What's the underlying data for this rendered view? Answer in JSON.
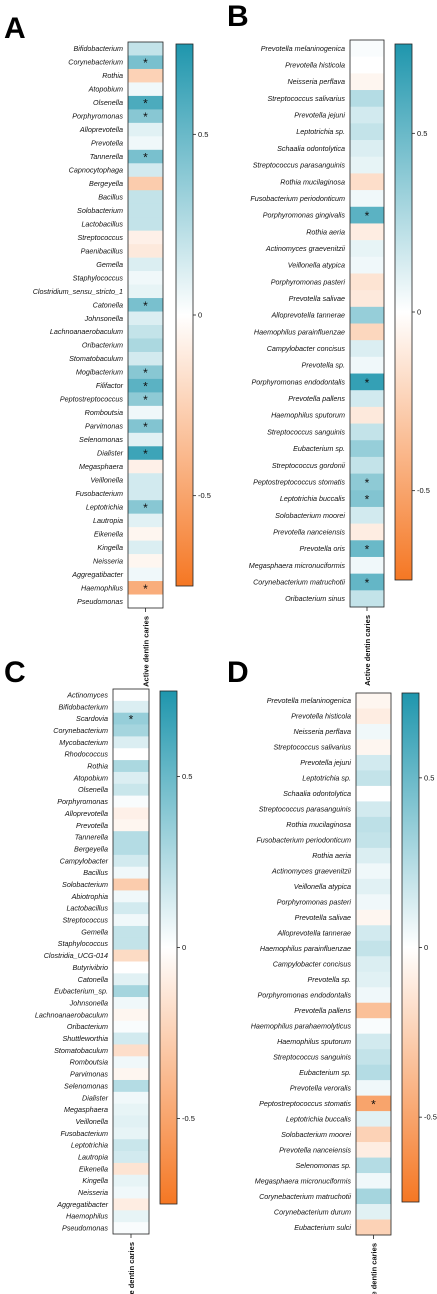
{
  "chart_data": [
    {
      "panel": "A",
      "type": "heatmap",
      "xlabel": "Active dentin caries",
      "colorbar": {
        "ticks": [
          0.5,
          0,
          -0.5
        ],
        "range": [
          -0.75,
          0.75
        ],
        "colors": {
          "positive": "#1f96ad",
          "zero": "#ffffff",
          "negative": "#f57723"
        }
      },
      "rows": [
        {
          "label": "Bifidobacterium",
          "value": 0.2,
          "sig": false
        },
        {
          "label": "Corynebacterium",
          "value": 0.45,
          "sig": true
        },
        {
          "label": "Rothia",
          "value": -0.25,
          "sig": false
        },
        {
          "label": "Atopobium",
          "value": 0.05,
          "sig": false
        },
        {
          "label": "Olsenella",
          "value": 0.6,
          "sig": true
        },
        {
          "label": "Porphyromonas",
          "value": 0.4,
          "sig": true
        },
        {
          "label": "Alloprevotella",
          "value": 0.1,
          "sig": false
        },
        {
          "label": "Prevotella",
          "value": 0.05,
          "sig": false
        },
        {
          "label": "Tannerella",
          "value": 0.45,
          "sig": true
        },
        {
          "label": "Capnocytophaga",
          "value": 0.15,
          "sig": false
        },
        {
          "label": "Bergeyella",
          "value": -0.28,
          "sig": false
        },
        {
          "label": "Bacillus",
          "value": 0.2,
          "sig": false
        },
        {
          "label": "Solobacterium",
          "value": 0.2,
          "sig": false
        },
        {
          "label": "Lactobacillus",
          "value": 0.2,
          "sig": false
        },
        {
          "label": "Streptococcus",
          "value": -0.08,
          "sig": false
        },
        {
          "label": "Paenibacillus",
          "value": -0.12,
          "sig": false
        },
        {
          "label": "Gemella",
          "value": 0.12,
          "sig": false
        },
        {
          "label": "Staphylococcus",
          "value": 0.05,
          "sig": false
        },
        {
          "label": "Clostridium_sensu_stricto_1",
          "value": 0.08,
          "sig": false
        },
        {
          "label": "Catonella",
          "value": 0.45,
          "sig": true
        },
        {
          "label": "Johnsonella",
          "value": 0.12,
          "sig": false
        },
        {
          "label": "Lachnoanaerobaculum",
          "value": 0.2,
          "sig": false
        },
        {
          "label": "Oribacterium",
          "value": 0.28,
          "sig": false
        },
        {
          "label": "Stomatobaculum",
          "value": 0.15,
          "sig": false
        },
        {
          "label": "Mogibacterium",
          "value": 0.4,
          "sig": true
        },
        {
          "label": "Filifactor",
          "value": 0.55,
          "sig": true
        },
        {
          "label": "Peptostreptococcus",
          "value": 0.38,
          "sig": true
        },
        {
          "label": "Romboutsia",
          "value": 0.05,
          "sig": false
        },
        {
          "label": "Parvimonas",
          "value": 0.42,
          "sig": true
        },
        {
          "label": "Selenomonas",
          "value": 0.1,
          "sig": false
        },
        {
          "label": "Dialister",
          "value": 0.65,
          "sig": true
        },
        {
          "label": "Megasphaera",
          "value": -0.08,
          "sig": false
        },
        {
          "label": "Veillonella",
          "value": 0.15,
          "sig": false
        },
        {
          "label": "Fusobacterium",
          "value": 0.15,
          "sig": false
        },
        {
          "label": "Leptotrichia",
          "value": 0.4,
          "sig": true
        },
        {
          "label": "Lautropia",
          "value": 0.1,
          "sig": false
        },
        {
          "label": "Eikenella",
          "value": -0.05,
          "sig": false
        },
        {
          "label": "Kingella",
          "value": 0.12,
          "sig": false
        },
        {
          "label": "Neisseria",
          "value": -0.05,
          "sig": false
        },
        {
          "label": "Aggregatibacter",
          "value": 0.05,
          "sig": false
        },
        {
          "label": "Haemophilus",
          "value": -0.45,
          "sig": true
        },
        {
          "label": "Pseudomonas",
          "value": 0.0,
          "sig": false
        }
      ]
    },
    {
      "panel": "B",
      "type": "heatmap",
      "xlabel": "Active dentin caries",
      "colorbar": {
        "ticks": [
          0.5,
          0,
          -0.5
        ],
        "range": [
          -0.75,
          0.75
        ],
        "colors": {
          "positive": "#1f96ad",
          "zero": "#ffffff",
          "negative": "#f57723"
        }
      },
      "rows": [
        {
          "label": "Prevotella melaninogenica",
          "value": 0.02,
          "sig": false
        },
        {
          "label": "Prevotella histicola",
          "value": 0.0,
          "sig": false
        },
        {
          "label": "Neisseria perflava",
          "value": -0.05,
          "sig": false
        },
        {
          "label": "Streptococcus salivarius",
          "value": 0.25,
          "sig": false
        },
        {
          "label": "Prevotella jejuni",
          "value": 0.15,
          "sig": false
        },
        {
          "label": "Leptotrichia sp.",
          "value": 0.2,
          "sig": false
        },
        {
          "label": "Schaalia odontolytica",
          "value": 0.12,
          "sig": false
        },
        {
          "label": "Streptococcus parasanguinis",
          "value": 0.08,
          "sig": false
        },
        {
          "label": "Rothia mucilaginosa",
          "value": -0.18,
          "sig": false
        },
        {
          "label": "Fusobacterium periodonticum",
          "value": 0.05,
          "sig": false
        },
        {
          "label": "Porphyromonas gingivalis",
          "value": 0.55,
          "sig": true
        },
        {
          "label": "Rothia aeria",
          "value": -0.1,
          "sig": false
        },
        {
          "label": "Actinomyces graevenitzii",
          "value": 0.08,
          "sig": false
        },
        {
          "label": "Veillonella atypica",
          "value": 0.05,
          "sig": false
        },
        {
          "label": "Porphyromonas pasteri",
          "value": -0.15,
          "sig": false
        },
        {
          "label": "Prevotella salivae",
          "value": -0.12,
          "sig": false
        },
        {
          "label": "Alloprevotella tannerae",
          "value": 0.35,
          "sig": false
        },
        {
          "label": "Haemophilus parainfluenzae",
          "value": -0.22,
          "sig": false
        },
        {
          "label": "Campylobacter concisus",
          "value": 0.12,
          "sig": false
        },
        {
          "label": "Prevotella sp.",
          "value": 0.05,
          "sig": false
        },
        {
          "label": "Porphyromonas endodontalis",
          "value": 0.68,
          "sig": true
        },
        {
          "label": "Prevotella pallens",
          "value": 0.15,
          "sig": false
        },
        {
          "label": "Haemophilus sputorum",
          "value": -0.12,
          "sig": false
        },
        {
          "label": "Streptococcus sanguinis",
          "value": 0.2,
          "sig": false
        },
        {
          "label": "Eubacterium sp.",
          "value": 0.35,
          "sig": false
        },
        {
          "label": "Streptococcus gordonii",
          "value": 0.2,
          "sig": false
        },
        {
          "label": "Peptostreptococcus stomatis",
          "value": 0.38,
          "sig": true
        },
        {
          "label": "Leptotrichia buccalis",
          "value": 0.42,
          "sig": true
        },
        {
          "label": "Solobacterium moorei",
          "value": 0.15,
          "sig": false
        },
        {
          "label": "Prevotella nanceiensis",
          "value": -0.1,
          "sig": false
        },
        {
          "label": "Prevotella oris",
          "value": 0.5,
          "sig": true
        },
        {
          "label": "Megasphaera micronuciformis",
          "value": 0.05,
          "sig": false
        },
        {
          "label": "Corynebacterium matruchotii",
          "value": 0.52,
          "sig": true
        },
        {
          "label": "Oribacterium sinus",
          "value": 0.2,
          "sig": false
        }
      ]
    },
    {
      "panel": "C",
      "type": "heatmap",
      "xlabel": "Active dentin caries",
      "colorbar": {
        "ticks": [
          0.5,
          0,
          -0.5
        ],
        "range": [
          -0.75,
          0.75
        ],
        "colors": {
          "positive": "#1f96ad",
          "zero": "#ffffff",
          "negative": "#f57723"
        }
      },
      "rows": [
        {
          "label": "Actinomyces",
          "value": 0.0,
          "sig": false
        },
        {
          "label": "Bifidobacterium",
          "value": 0.12,
          "sig": false
        },
        {
          "label": "Scardovia",
          "value": 0.35,
          "sig": true
        },
        {
          "label": "Corynebacterium",
          "value": 0.3,
          "sig": false
        },
        {
          "label": "Mycobacterium",
          "value": 0.12,
          "sig": false
        },
        {
          "label": "Rhodococcus",
          "value": 0.0,
          "sig": false
        },
        {
          "label": "Rothia",
          "value": 0.28,
          "sig": false
        },
        {
          "label": "Atopobium",
          "value": 0.12,
          "sig": false
        },
        {
          "label": "Olsenella",
          "value": 0.18,
          "sig": false
        },
        {
          "label": "Porphyromonas",
          "value": 0.02,
          "sig": false
        },
        {
          "label": "Alloprevotella",
          "value": -0.08,
          "sig": false
        },
        {
          "label": "Prevotella",
          "value": -0.05,
          "sig": false
        },
        {
          "label": "Tannerella",
          "value": 0.25,
          "sig": false
        },
        {
          "label": "Bergeyella",
          "value": 0.25,
          "sig": false
        },
        {
          "label": "Campylobacter",
          "value": 0.15,
          "sig": false
        },
        {
          "label": "Bacillus",
          "value": 0.05,
          "sig": false
        },
        {
          "label": "Solobacterium",
          "value": -0.28,
          "sig": false
        },
        {
          "label": "Abiotrophia",
          "value": 0.05,
          "sig": false
        },
        {
          "label": "Lactobacillus",
          "value": 0.15,
          "sig": false
        },
        {
          "label": "Streptococcus",
          "value": 0.05,
          "sig": false
        },
        {
          "label": "Gemella",
          "value": 0.2,
          "sig": false
        },
        {
          "label": "Staphylococcus",
          "value": 0.2,
          "sig": false
        },
        {
          "label": "Clostridia_UCG-014",
          "value": -0.2,
          "sig": false
        },
        {
          "label": "Butyrivibrio",
          "value": 0.0,
          "sig": false
        },
        {
          "label": "Catonella",
          "value": 0.1,
          "sig": false
        },
        {
          "label": "Eubacterium_sp.",
          "value": 0.3,
          "sig": false
        },
        {
          "label": "Johnsonella",
          "value": 0.05,
          "sig": false
        },
        {
          "label": "Lachnoanaerobaculum",
          "value": -0.05,
          "sig": false
        },
        {
          "label": "Oribacterium",
          "value": 0.02,
          "sig": false
        },
        {
          "label": "Shuttleworthia",
          "value": 0.15,
          "sig": false
        },
        {
          "label": "Stomatobaculum",
          "value": -0.18,
          "sig": false
        },
        {
          "label": "Romboutsia",
          "value": 0.05,
          "sig": false
        },
        {
          "label": "Parvimonas",
          "value": -0.05,
          "sig": false
        },
        {
          "label": "Selenomonas",
          "value": 0.25,
          "sig": false
        },
        {
          "label": "Dialister",
          "value": 0.05,
          "sig": false
        },
        {
          "label": "Megasphaera",
          "value": 0.08,
          "sig": false
        },
        {
          "label": "Veillonella",
          "value": 0.1,
          "sig": false
        },
        {
          "label": "Fusobacterium",
          "value": 0.08,
          "sig": false
        },
        {
          "label": "Leptotrichia",
          "value": 0.18,
          "sig": false
        },
        {
          "label": "Lautropia",
          "value": 0.15,
          "sig": false
        },
        {
          "label": "Eikenella",
          "value": -0.15,
          "sig": false
        },
        {
          "label": "Kingella",
          "value": 0.08,
          "sig": false
        },
        {
          "label": "Neisseria",
          "value": 0.05,
          "sig": false
        },
        {
          "label": "Aggregatibacter",
          "value": -0.1,
          "sig": false
        },
        {
          "label": "Haemophilus",
          "value": 0.08,
          "sig": false
        },
        {
          "label": "Pseudomonas",
          "value": 0.02,
          "sig": false
        }
      ]
    },
    {
      "panel": "D",
      "type": "heatmap",
      "xlabel": "Active dentin caries",
      "colorbar": {
        "ticks": [
          0.5,
          0,
          -0.5
        ],
        "range": [
          -0.75,
          0.75
        ],
        "colors": {
          "positive": "#1f96ad",
          "zero": "#ffffff",
          "negative": "#f57723"
        }
      },
      "rows": [
        {
          "label": "Prevotella melaninogenica",
          "value": -0.05,
          "sig": false
        },
        {
          "label": "Prevotella histicola",
          "value": -0.1,
          "sig": false
        },
        {
          "label": "Neisseria perflava",
          "value": 0.05,
          "sig": false
        },
        {
          "label": "Streptococcus salivarius",
          "value": -0.05,
          "sig": false
        },
        {
          "label": "Prevotella jejuni",
          "value": 0.15,
          "sig": false
        },
        {
          "label": "Leptotrichia sp.",
          "value": 0.2,
          "sig": false
        },
        {
          "label": "Schaalia odontolytica",
          "value": 0.0,
          "sig": false
        },
        {
          "label": "Streptococcus parasanguinis",
          "value": 0.15,
          "sig": false
        },
        {
          "label": "Rothia mucilaginosa",
          "value": 0.22,
          "sig": false
        },
        {
          "label": "Fusobacterium periodonticum",
          "value": 0.2,
          "sig": false
        },
        {
          "label": "Rothia aeria",
          "value": 0.12,
          "sig": false
        },
        {
          "label": "Actinomyces graevenitzii",
          "value": 0.05,
          "sig": false
        },
        {
          "label": "Veillonella atypica",
          "value": 0.1,
          "sig": false
        },
        {
          "label": "Porphyromonas pasteri",
          "value": 0.05,
          "sig": false
        },
        {
          "label": "Prevotella salivae",
          "value": -0.05,
          "sig": false
        },
        {
          "label": "Alloprevotella tannerae",
          "value": 0.15,
          "sig": false
        },
        {
          "label": "Haemophilus parainfluenzae",
          "value": 0.2,
          "sig": false
        },
        {
          "label": "Campylobacter concisus",
          "value": 0.12,
          "sig": false
        },
        {
          "label": "Prevotella sp.",
          "value": 0.1,
          "sig": false
        },
        {
          "label": "Porphyromonas endodontalis",
          "value": 0.05,
          "sig": false
        },
        {
          "label": "Prevotella pallens",
          "value": -0.35,
          "sig": false
        },
        {
          "label": "Haemophilus parahaemolyticus",
          "value": 0.02,
          "sig": false
        },
        {
          "label": "Haemophilus sputorum",
          "value": 0.15,
          "sig": false
        },
        {
          "label": "Streptococcus sanguinis",
          "value": 0.2,
          "sig": false
        },
        {
          "label": "Eubacterium sp.",
          "value": 0.25,
          "sig": false
        },
        {
          "label": "Prevotella veroralis",
          "value": 0.05,
          "sig": false
        },
        {
          "label": "Peptostreptococcus stomatis",
          "value": -0.5,
          "sig": true
        },
        {
          "label": "Leptotrichia buccalis",
          "value": 0.1,
          "sig": false
        },
        {
          "label": "Solobacterium moorei",
          "value": -0.25,
          "sig": false
        },
        {
          "label": "Prevotella nanceiensis",
          "value": -0.1,
          "sig": false
        },
        {
          "label": "Selenomonas sp.",
          "value": 0.25,
          "sig": false
        },
        {
          "label": "Megasphaera micronuciformis",
          "value": 0.05,
          "sig": false
        },
        {
          "label": "Corynebacterium matruchotii",
          "value": 0.3,
          "sig": false
        },
        {
          "label": "Corynebacterium durum",
          "value": 0.1,
          "sig": false
        },
        {
          "label": "Eubacterium sulci",
          "value": -0.25,
          "sig": false
        }
      ]
    }
  ],
  "panel_letters": [
    "A",
    "B",
    "C",
    "D"
  ],
  "sig_marker": "*"
}
